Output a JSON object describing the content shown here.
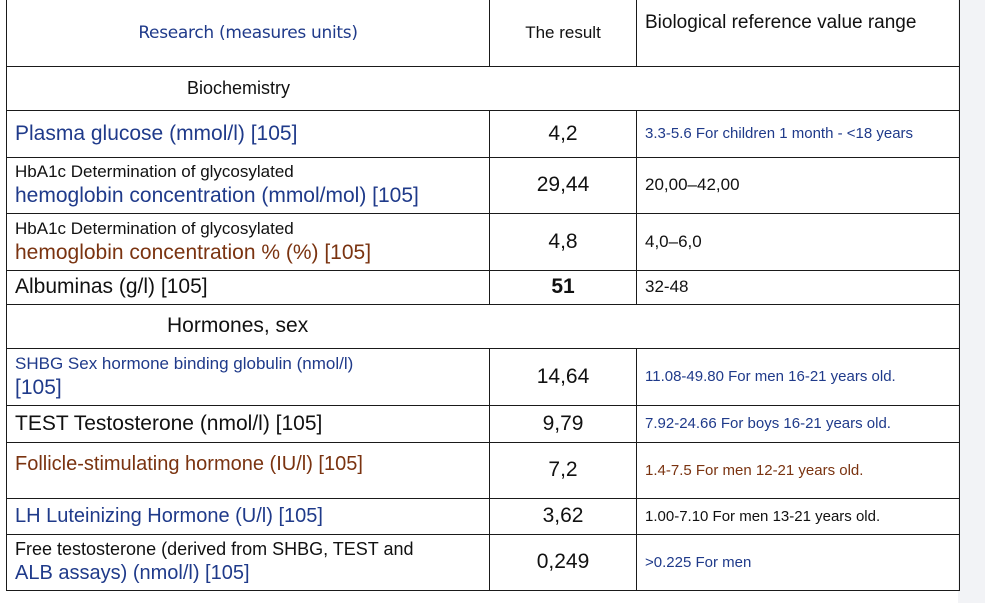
{
  "header": {
    "research": "Research (measures units)",
    "result": "The result",
    "reference": "Biological reference value range"
  },
  "sections": {
    "biochemistry": "Biochemistry",
    "hormones": "Hormones, sex"
  },
  "rows": [
    {
      "name": "Plasma glucose (mmol/l) [105]",
      "result": "4,2",
      "reference": "3.3-5.6 For children 1 month - <18 years"
    },
    {
      "name_line1": "HbA1c Determination of glycosylated",
      "name_line2": "hemoglobin concentration (mmol/mol) [105]",
      "result": "29,44",
      "reference": "20,00–42,00"
    },
    {
      "name_line1": "HbA1c Determination of glycosylated",
      "name_line2": "hemoglobin concentration % (%) [105]",
      "result": "4,8",
      "reference": "4,0–6,0"
    },
    {
      "name": "Albuminas (g/l) [105]",
      "result": "51",
      "reference": "32-48"
    },
    {
      "name_line1": "SHBG Sex hormone binding globulin (nmol/l)",
      "name_line2": "[105]",
      "result": "14,64",
      "reference": "11.08-49.80 For men 16-21 years old."
    },
    {
      "name": "TEST Testosterone (nmol/l) [105]",
      "result": "9,79",
      "reference": "7.92-24.66 For boys 16-21 years old."
    },
    {
      "name": "Follicle-stimulating hormone (IU/l) [105]",
      "result": "7,2",
      "reference": "1.4-7.5 For men 12-21 years old."
    },
    {
      "name": "LH Luteinizing Hormone (U/l) [105]",
      "result": "3,62",
      "reference": "1.00-7.10 For men 13-21 years old."
    },
    {
      "name_line1": "Free testosterone (derived from SHBG, TEST and",
      "name_line2": "ALB assays) (nmol/l) [105]",
      "result": "0,249",
      "reference": ">0.225 For men"
    }
  ],
  "colors": {
    "navy": "#1f3a8a",
    "brown": "#7a3310",
    "text": "#111111"
  }
}
